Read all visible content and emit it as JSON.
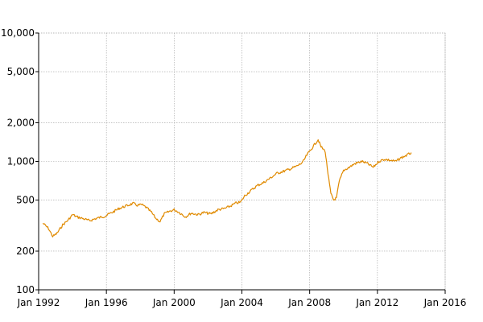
{
  "chart_data": {
    "type": "line",
    "title": "",
    "xlabel": "",
    "ylabel": "",
    "y_scale": "log",
    "ylim": [
      100,
      10000
    ],
    "xlim": [
      "1992-01",
      "2016-01"
    ],
    "grid": true,
    "legend": "none",
    "line_color": "#e08a00",
    "y_ticks": [
      {
        "value": 100,
        "label": "100"
      },
      {
        "value": 200,
        "label": "200"
      },
      {
        "value": 500,
        "label": "500"
      },
      {
        "value": 1000,
        "label": "1,000"
      },
      {
        "value": 2000,
        "label": "2,000"
      },
      {
        "value": 5000,
        "label": "5,000"
      },
      {
        "value": 10000,
        "label": "10,000"
      }
    ],
    "x_ticks": [
      {
        "value": "1992-01",
        "label": "Jan 1992"
      },
      {
        "value": "1996-01",
        "label": "Jan 1996"
      },
      {
        "value": "2000-01",
        "label": "Jan 2000"
      },
      {
        "value": "2004-01",
        "label": "Jan 2004"
      },
      {
        "value": "2008-01",
        "label": "Jan 2008"
      },
      {
        "value": "2012-01",
        "label": "Jan 2012"
      },
      {
        "value": "2016-01",
        "label": "Jan 2016"
      }
    ],
    "series": [
      {
        "points": [
          [
            "1992-04",
            330
          ],
          [
            "1992-08",
            300
          ],
          [
            "1992-11",
            260
          ],
          [
            "1993-02",
            275
          ],
          [
            "1993-06",
            320
          ],
          [
            "1993-10",
            350
          ],
          [
            "1994-01",
            385
          ],
          [
            "1994-04",
            370
          ],
          [
            "1994-08",
            360
          ],
          [
            "1995-01",
            345
          ],
          [
            "1995-06",
            360
          ],
          [
            "1995-12",
            375
          ],
          [
            "1996-05",
            400
          ],
          [
            "1996-10",
            430
          ],
          [
            "1997-03",
            450
          ],
          [
            "1997-08",
            470
          ],
          [
            "1997-11",
            455
          ],
          [
            "1998-02",
            460
          ],
          [
            "1998-05",
            440
          ],
          [
            "1998-09",
            400
          ],
          [
            "1998-12",
            360
          ],
          [
            "1999-03",
            340
          ],
          [
            "1999-06",
            390
          ],
          [
            "1999-10",
            410
          ],
          [
            "2000-01",
            420
          ],
          [
            "2000-04",
            405
          ],
          [
            "2000-09",
            370
          ],
          [
            "2001-01",
            395
          ],
          [
            "2001-06",
            385
          ],
          [
            "2001-10",
            400
          ],
          [
            "2002-03",
            390
          ],
          [
            "2002-08",
            420
          ],
          [
            "2003-01",
            430
          ],
          [
            "2003-05",
            450
          ],
          [
            "2003-09",
            475
          ],
          [
            "2003-12",
            480
          ],
          [
            "2004-03",
            540
          ],
          [
            "2004-08",
            600
          ],
          [
            "2004-12",
            650
          ],
          [
            "2005-04",
            680
          ],
          [
            "2005-09",
            740
          ],
          [
            "2006-02",
            810
          ],
          [
            "2006-07",
            840
          ],
          [
            "2006-12",
            880
          ],
          [
            "2007-04",
            920
          ],
          [
            "2007-08",
            980
          ],
          [
            "2007-11",
            1120
          ],
          [
            "2008-02",
            1240
          ],
          [
            "2008-05",
            1380
          ],
          [
            "2008-07",
            1480
          ],
          [
            "2008-09",
            1300
          ],
          [
            "2008-12",
            1200
          ],
          [
            "2009-02",
            800
          ],
          [
            "2009-04",
            560
          ],
          [
            "2009-06",
            500
          ],
          [
            "2009-08",
            520
          ],
          [
            "2009-10",
            700
          ],
          [
            "2010-01",
            850
          ],
          [
            "2010-05",
            900
          ],
          [
            "2010-09",
            960
          ],
          [
            "2011-02",
            1000
          ],
          [
            "2011-06",
            960
          ],
          [
            "2011-10",
            900
          ],
          [
            "2012-02",
            1000
          ],
          [
            "2012-06",
            1040
          ],
          [
            "2012-10",
            1020
          ],
          [
            "2013-02",
            1000
          ],
          [
            "2013-06",
            1070
          ],
          [
            "2013-10",
            1120
          ],
          [
            "2014-01",
            1170
          ]
        ]
      }
    ]
  }
}
